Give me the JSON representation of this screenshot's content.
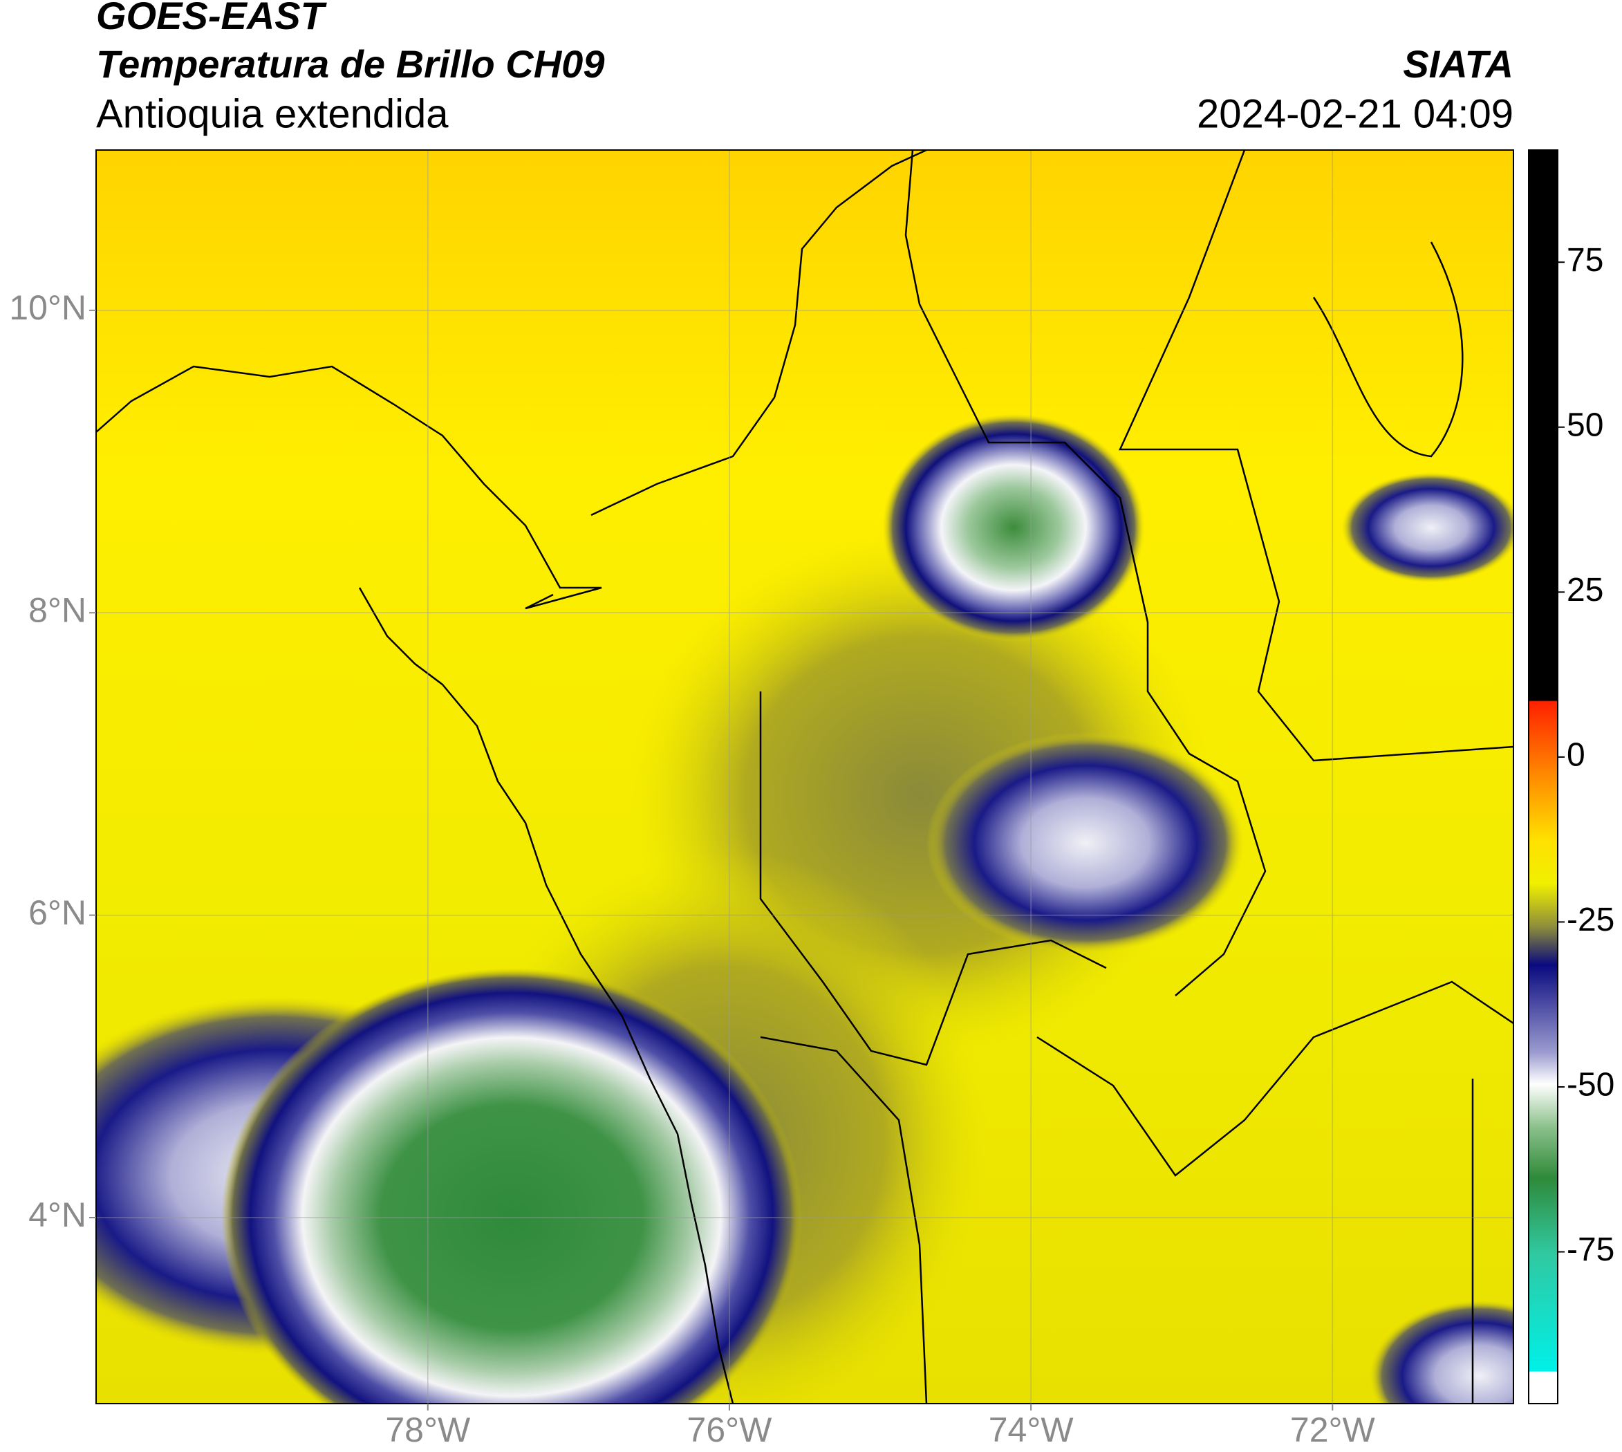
{
  "header": {
    "title_line1": "GOES-EAST",
    "title_line2": "Temperatura de Brillo CH09",
    "subtitle": "Antioquia extendida",
    "source": "SIATA",
    "timestamp": "2024-02-21 04:09"
  },
  "map": {
    "xlim": [
      -80.2,
      -70.8
    ],
    "ylim": [
      2.77,
      11.06
    ],
    "xticks": [
      {
        "value": -78,
        "label": "78°W"
      },
      {
        "value": -76,
        "label": "76°W"
      },
      {
        "value": -74,
        "label": "74°W"
      },
      {
        "value": -72,
        "label": "72°W"
      }
    ],
    "yticks": [
      {
        "value": 10,
        "label": "10°N"
      },
      {
        "value": 8,
        "label": "8°N"
      },
      {
        "value": 6,
        "label": "6°N"
      },
      {
        "value": 4,
        "label": "4°N"
      }
    ],
    "grid": true
  },
  "colorbar": {
    "lim": [
      -98,
      92
    ],
    "ticks": [
      75,
      50,
      25,
      0,
      -25,
      -50,
      -75
    ]
  }
}
